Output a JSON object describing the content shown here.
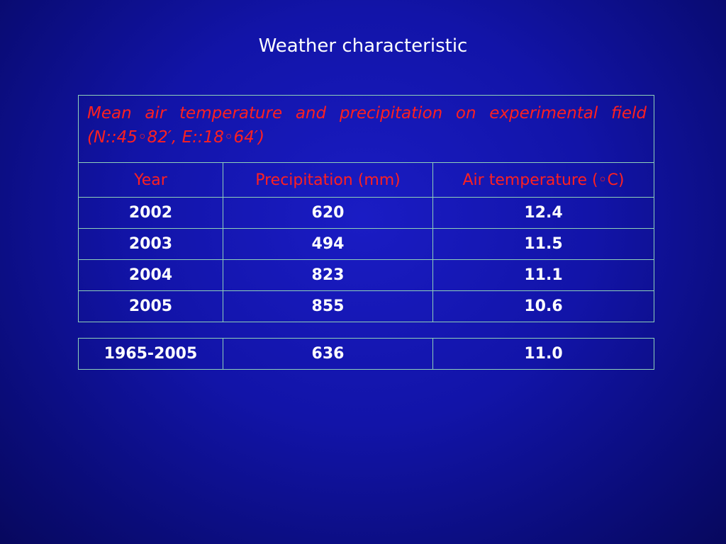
{
  "slide": {
    "title": "Weather characteristic"
  },
  "table": {
    "caption": "Mean air temperature and precipitation on experimental field (N::45◦82′, E::18◦64′)",
    "headers": [
      "Year",
      "Precipitation (mm)",
      "Air temperature (◦C)"
    ],
    "rows": [
      [
        "2002",
        "620",
        "12.4"
      ],
      [
        "2003",
        "494",
        "11.5"
      ],
      [
        "2004",
        "823",
        "11.1"
      ],
      [
        "2005",
        "855",
        "10.6"
      ]
    ],
    "summary_row": [
      "1965-2005",
      "636",
      "11.0"
    ]
  },
  "colors": {
    "background": "#1214a8",
    "header_text": "#ff2020",
    "body_text": "#ffffff",
    "grid": "#8fd0b8"
  }
}
